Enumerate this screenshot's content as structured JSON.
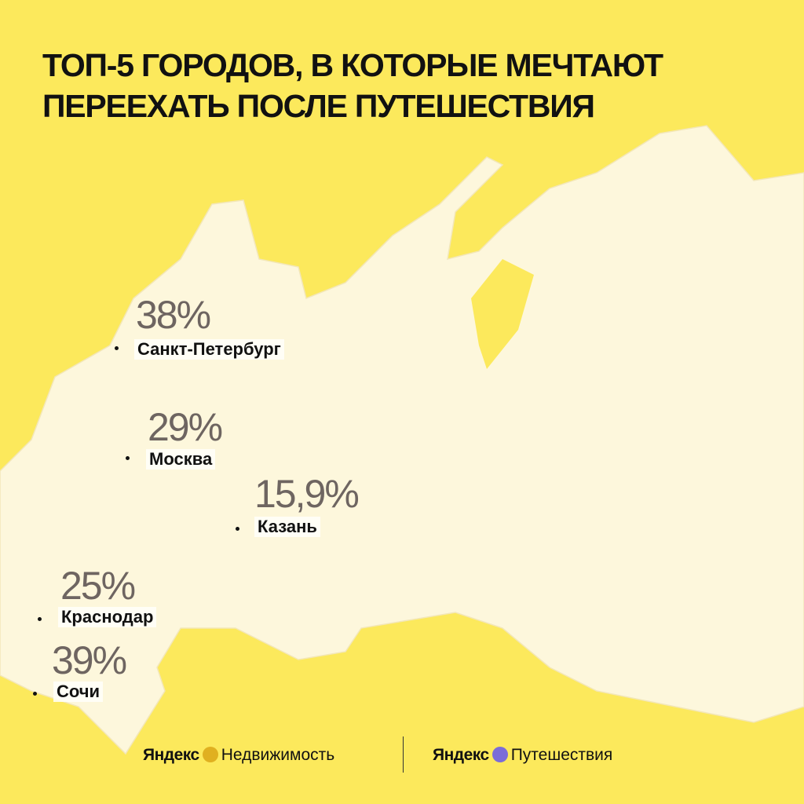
{
  "title": [
    "ТОП-5 ГОРОДОВ, В КОТОРЫЕ МЕЧТАЮТ",
    "ПЕРЕЕХАТЬ ПОСЛЕ ПУТЕШЕСТВИЯ"
  ],
  "cities": [
    {
      "share": "38%",
      "name": "Санкт-Петербург"
    },
    {
      "share": "29%",
      "name": "Москва"
    },
    {
      "share": "15,9%",
      "name": "Казань"
    },
    {
      "share": "25%",
      "name": "Краснодар"
    },
    {
      "share": "39%",
      "name": "Сочи"
    }
  ],
  "footer": {
    "left": {
      "brand": "Яндекс",
      "product": "Недвижимость"
    },
    "right": {
      "brand": "Яндекс",
      "product": "Путешествия"
    }
  }
}
